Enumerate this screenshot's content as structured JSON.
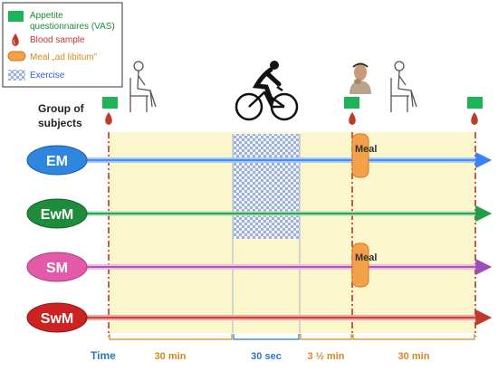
{
  "legend": {
    "items": [
      {
        "icon": "appetite-questionnaire-icon",
        "color": "#1db356",
        "label_line1": "Appetite",
        "label_line2": "questionnaires (VAS)"
      },
      {
        "icon": "blood-drop-icon",
        "color": "#c0392b",
        "label": "Blood sample"
      },
      {
        "icon": "meal-capsule-icon",
        "color": "#f5a04a",
        "label": "Meal „ad libitum”"
      },
      {
        "icon": "exercise-pattern-icon",
        "color": "#3b5bdb",
        "label": "Exercise"
      }
    ]
  },
  "header": {
    "group_label_line1": "Group of",
    "group_label_line2": "subjects"
  },
  "groups": [
    {
      "code": "EM",
      "fill": "#2e86de",
      "line": "#3b82f6",
      "glow": "#a5c8f5"
    },
    {
      "code": "EwM",
      "fill": "#1e8c3a",
      "line": "#1e9e48",
      "glow": "#a8dcb5"
    },
    {
      "code": "SM",
      "fill": "#e35aa8",
      "line": "#9b4fb8",
      "glow": "#f5b9da"
    },
    {
      "code": "SwM",
      "fill": "#cc2222",
      "line": "#c0392b",
      "glow": "#f2a8a8"
    }
  ],
  "meal_labels": [
    "Meal",
    "Meal"
  ],
  "timeline": {
    "time_label": "Time",
    "segments": [
      {
        "label": "30 min",
        "color": "#d08a1e"
      },
      {
        "label": "30 sec",
        "color": "#2e75c0"
      },
      {
        "label": "3 ½ min",
        "color": "#d08a1e"
      },
      {
        "label": "30 min",
        "color": "#d08a1e"
      }
    ]
  },
  "colors": {
    "period_fill": "#fbf6cc",
    "marker_line": "#b02a2a",
    "vas_green": "#1db356",
    "drop_red": "#c0392b",
    "meal_orange": "#f5a04a"
  }
}
